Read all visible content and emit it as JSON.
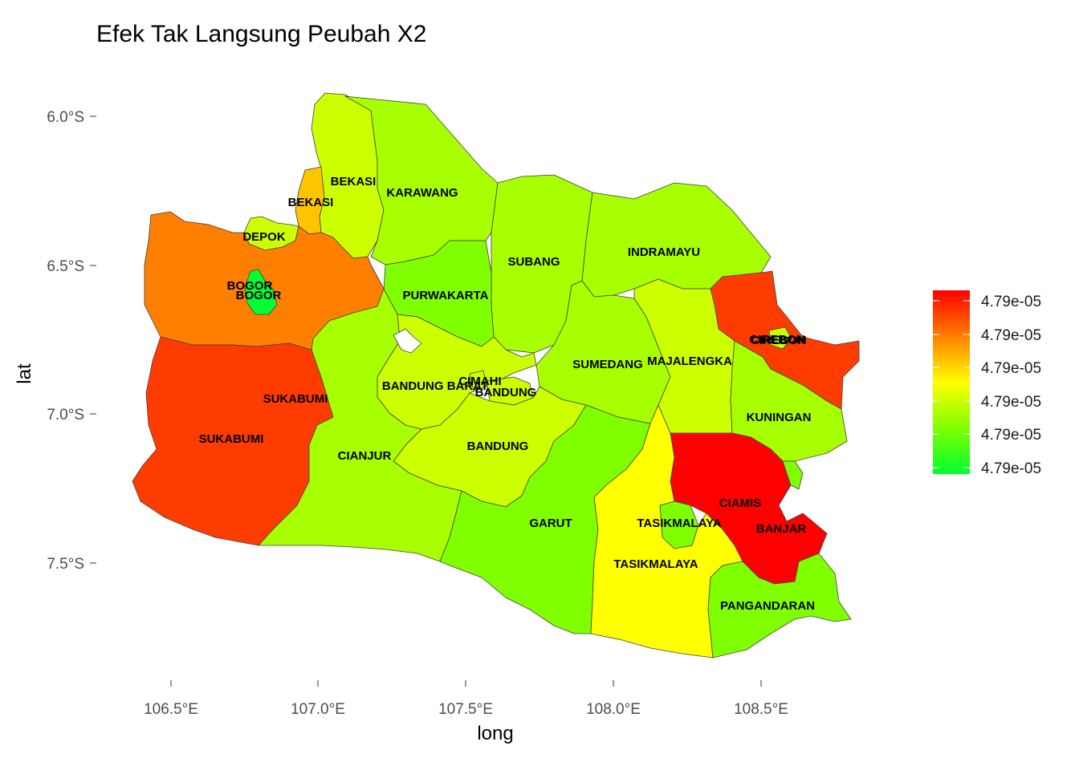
{
  "title": "Efek Tak Langsung Peubah X2",
  "colors": {
    "red": "#ff0000",
    "red_orange": "#ff3c00",
    "orange": "#ff7f00",
    "amber": "#ffc400",
    "yellow": "#ffff00",
    "yellow_green": "#ccff00",
    "lime": "#a8ff00",
    "green_lime": "#80ff00",
    "green": "#3cff00",
    "bright_green": "#00ff33"
  },
  "chart_data": {
    "type": "choropleth",
    "title": "Efek Tak Langsung Peubah X2",
    "xlabel": "long",
    "ylabel": "lat",
    "x_ticks": [
      "106.5°E",
      "107.0°E",
      "107.5°E",
      "108.0°E",
      "108.5°E"
    ],
    "y_ticks": [
      "6.0°S",
      "6.5°S",
      "7.0°S",
      "7.5°S"
    ],
    "legend": {
      "position": "right",
      "labels": [
        "4.79e-05",
        "4.79e-05",
        "4.79e-05",
        "4.79e-05",
        "4.79e-05",
        "4.79e-05"
      ],
      "gradient": [
        "#ff0000",
        "#ff8000",
        "#ffff00",
        "#80ff00",
        "#00ff33"
      ]
    },
    "regions": [
      {
        "name": "BEKASI",
        "color_key": "yellow_green"
      },
      {
        "name": "BEKASI",
        "color_key": "amber"
      },
      {
        "name": "KARAWANG",
        "color_key": "lime"
      },
      {
        "name": "DEPOK",
        "color_key": "yellow_green"
      },
      {
        "name": "BOGOR",
        "color_key": "orange"
      },
      {
        "name": "BOGOR",
        "color_key": "bright_green"
      },
      {
        "name": "SUBANG",
        "color_key": "lime"
      },
      {
        "name": "INDRAMAYU",
        "color_key": "lime"
      },
      {
        "name": "PURWAKARTA",
        "color_key": "green_lime"
      },
      {
        "name": "CIREBON",
        "color_key": "red_orange"
      },
      {
        "name": "CIREBON",
        "color_key": "yellow_green"
      },
      {
        "name": "SUMEDANG",
        "color_key": "lime"
      },
      {
        "name": "MAJALENGKA",
        "color_key": "yellow_green"
      },
      {
        "name": "BANDUNG BARAT",
        "color_key": "yellow_green"
      },
      {
        "name": "CIMAHI",
        "color_key": "yellow_green"
      },
      {
        "name": "BANDUNG",
        "color_key": "yellow_green"
      },
      {
        "name": "BANDUNG",
        "color_key": "yellow_green"
      },
      {
        "name": "SUKABUMI",
        "color_key": "amber"
      },
      {
        "name": "SUKABUMI",
        "color_key": "red_orange"
      },
      {
        "name": "KUNINGAN",
        "color_key": "lime"
      },
      {
        "name": "CIANJUR",
        "color_key": "lime"
      },
      {
        "name": "CIAMIS",
        "color_key": "red"
      },
      {
        "name": "GARUT",
        "color_key": "green_lime"
      },
      {
        "name": "TASIKMALAYA",
        "color_key": "green_lime"
      },
      {
        "name": "TASIKMALAYA",
        "color_key": "yellow"
      },
      {
        "name": "BANJAR",
        "color_key": "green_lime"
      },
      {
        "name": "PANGANDARAN",
        "color_key": "green_lime"
      }
    ]
  }
}
